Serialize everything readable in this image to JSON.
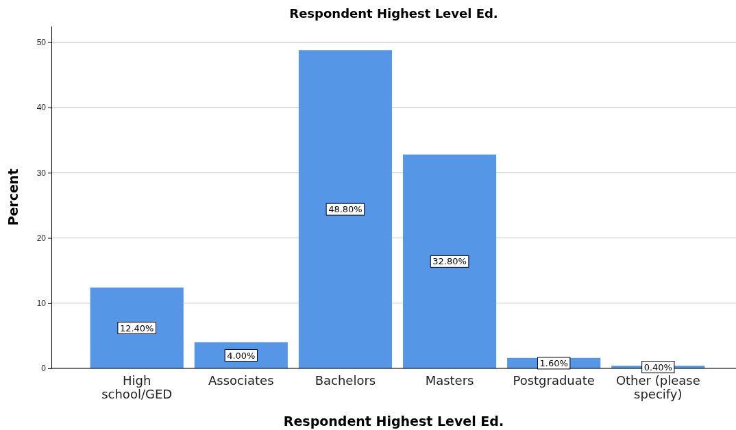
{
  "chart_data": {
    "type": "bar",
    "title": "Respondent Highest Level Ed.",
    "xlabel": "Respondent Highest Level Ed.",
    "ylabel": "Percent",
    "categories": [
      "High school/GED",
      "Associates",
      "Bachelors",
      "Masters",
      "Postgraduate",
      "Other (please specify)"
    ],
    "values": [
      12.4,
      4.0,
      48.8,
      32.8,
      1.6,
      0.4
    ],
    "value_labels": [
      "12.40%",
      "4.00%",
      "48.80%",
      "32.80%",
      "1.60%",
      "0.40%"
    ],
    "color": "#5596e6",
    "ylim": [
      0,
      52.5
    ],
    "yticks": [
      0,
      10,
      20,
      30,
      40,
      50
    ],
    "grid": "y"
  }
}
